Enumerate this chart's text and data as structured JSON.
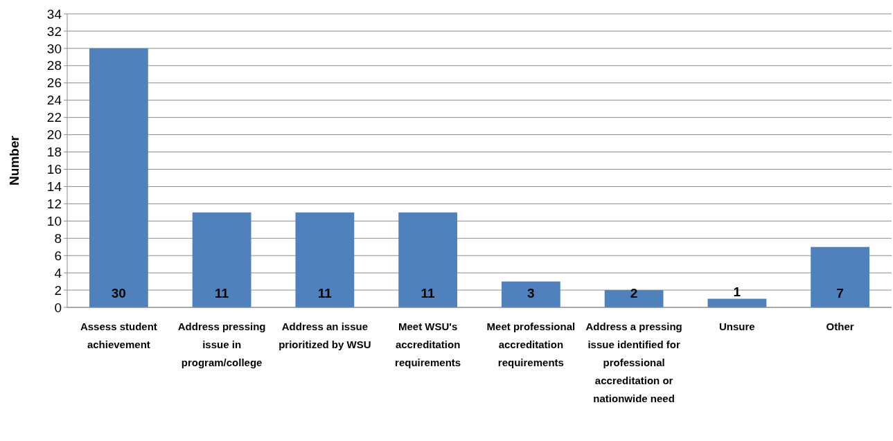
{
  "chart_data": {
    "type": "bar",
    "ylabel": "Number",
    "categories": [
      "Assess student achievement",
      "Address pressing issue in program/college",
      "Address an issue prioritized by WSU",
      "Meet WSU's accreditation requirements",
      "Meet professional accreditation requirements",
      "Address a pressing issue identified for professional accreditation or nationwide need",
      "Unsure",
      "Other"
    ],
    "values": [
      30,
      11,
      11,
      11,
      3,
      2,
      1,
      7
    ],
    "color": "#4f81bd",
    "ylim": [
      0,
      34
    ],
    "yticks": [
      0,
      2,
      4,
      6,
      8,
      10,
      12,
      14,
      16,
      18,
      20,
      22,
      24,
      26,
      28,
      30,
      32,
      34
    ],
    "grid": "y",
    "data_labels": true
  }
}
